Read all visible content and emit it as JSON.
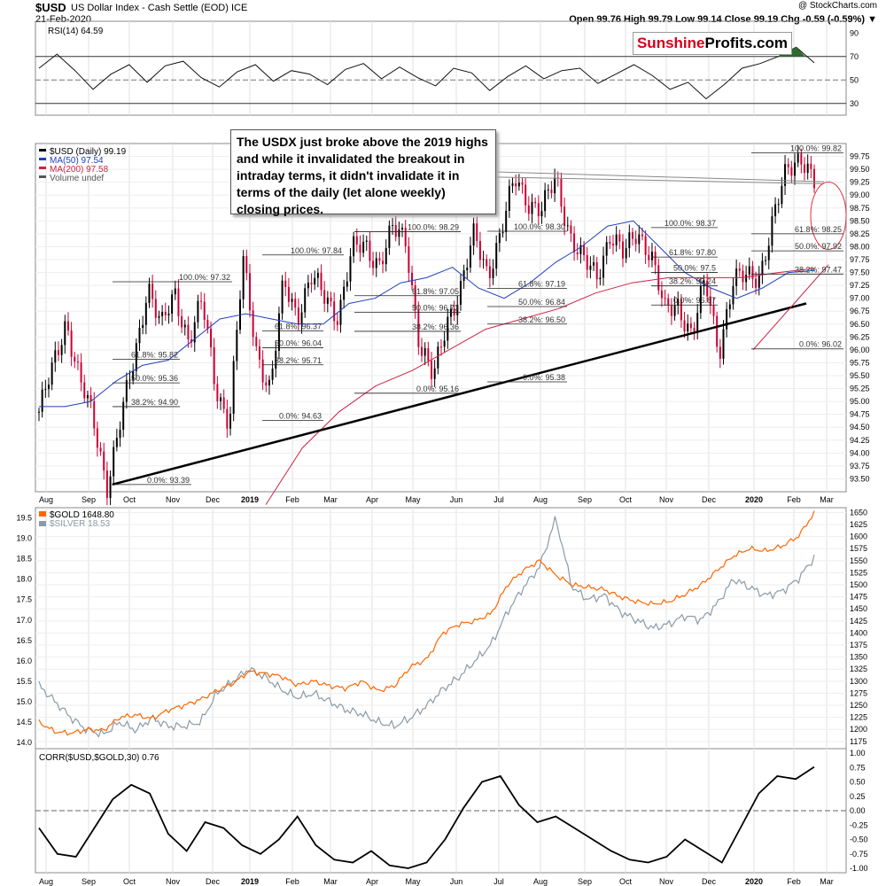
{
  "header": {
    "symbol": "$USD",
    "description": "US Dollar Index - Cash Settle (EOD)  ICE",
    "date": "21-Feb-2020",
    "credit": "@ StockCharts.com",
    "ohlc": "Open 99.76  High 99.79  Low 99.14  Close 99.19  Chg -0.59 (-0.59%) ▼"
  },
  "logo": {
    "part1": "Sunshine",
    "part2": "Profits.com"
  },
  "annotation": "The USDX just broke above the 2019 highs and while it invalidated the breakout in intraday terms, it didn't invalidate it in terms of the daily (let alone weekly) closing prices.",
  "colors": {
    "gold": "#ff6600",
    "silver": "#8a9aa6",
    "ma50": "#1f3fbf",
    "ma200": "#cc2244",
    "candle_down": "#cc0033",
    "candle_up": "#000000",
    "rsi_fill": "#2e6b2e"
  },
  "chart_data": [
    {
      "type": "line",
      "panel": "RSI",
      "title": "RSI(14) 64.59",
      "yticks": [
        30,
        50,
        70,
        90
      ],
      "ylim": [
        20,
        100
      ],
      "reference_lines": [
        30,
        50,
        70
      ],
      "series": [
        {
          "name": "RSI(14)",
          "values": [
            60,
            72,
            58,
            42,
            55,
            63,
            48,
            62,
            66,
            52,
            44,
            57,
            63,
            49,
            58,
            55,
            46,
            59,
            64,
            51,
            61,
            52,
            45,
            60,
            56,
            41,
            53,
            62,
            51,
            58,
            60,
            47,
            55,
            63,
            54,
            42,
            48,
            34,
            46,
            60,
            64,
            70,
            78,
            64.59
          ]
        }
      ]
    },
    {
      "type": "line",
      "panel": "USD",
      "title": "$USD (Daily) 99.19",
      "legend": [
        "$USD (Daily) 99.19",
        "MA(50) 97.54",
        "MA(200) 97.58",
        "Volume undef"
      ],
      "ylim": [
        93.25,
        100.0
      ],
      "yticks": [
        93.5,
        93.75,
        94.0,
        94.25,
        94.5,
        94.75,
        95.0,
        95.25,
        95.5,
        95.75,
        96.0,
        96.25,
        96.5,
        96.75,
        97.0,
        97.25,
        97.5,
        97.75,
        98.0,
        98.25,
        98.5,
        98.75,
        99.0,
        99.25,
        99.5,
        99.75
      ],
      "x_labels": [
        "Aug",
        "Sep",
        "Oct",
        "Nov",
        "Dec",
        "2019",
        "Feb",
        "Mar",
        "Apr",
        "May",
        "Jun",
        "Jul",
        "Aug",
        "Sep",
        "Oct",
        "Nov",
        "Dec",
        "2020",
        "Feb",
        "Mar"
      ],
      "series": [
        {
          "name": "$USD (Daily)",
          "values": [
            94.8,
            95.6,
            96.6,
            95.4,
            94.6,
            93.4,
            94.6,
            95.8,
            97.3,
            96.4,
            97.1,
            96.2,
            96.9,
            95.3,
            94.6,
            97.7,
            96.0,
            95.2,
            97.3,
            96.7,
            97.4,
            97.0,
            96.7,
            97.9,
            98.0,
            97.7,
            98.3,
            98.1,
            96.1,
            95.4,
            96.6,
            97.2,
            98.2,
            97.5,
            98.3,
            99.3,
            98.9,
            98.7,
            99.3,
            98.3,
            97.7,
            97.4,
            98.3,
            97.8,
            98.3,
            97.9,
            96.7,
            96.9,
            96.3,
            97.3,
            96.0,
            97.3,
            97.4,
            97.5,
            98.5,
            99.5,
            99.82,
            99.19
          ]
        },
        {
          "name": "MA(50)",
          "values": [
            94.9,
            94.9,
            95.0,
            95.4,
            95.7,
            95.8,
            96.2,
            96.6,
            96.7,
            96.6,
            96.5,
            96.5,
            96.9,
            97.0,
            97.3,
            97.4,
            97.6,
            97.2,
            97.0,
            97.3,
            97.7,
            98.0,
            98.4,
            98.5,
            98.0,
            97.5,
            97.2,
            97.0,
            97.2,
            97.5,
            97.54
          ]
        },
        {
          "name": "MA(200)",
          "values": [
            93.0,
            94.1,
            94.8,
            95.3,
            95.6,
            96.0,
            96.4,
            96.6,
            96.8,
            97.1,
            97.3,
            97.4,
            97.4,
            97.4,
            97.5,
            97.58
          ]
        }
      ],
      "fib_labels": [
        "0.0%: 93.39",
        "100.0%: 97.32",
        "61.8%: 95.82",
        "50.0%: 95.36",
        "38.2%: 94.90",
        "0.0%: 94.63",
        "100.0%: 97.84",
        "61.8%: 96.37",
        "50.0%: 96.04",
        "38.2%: 95.71",
        "100.0%: 98.29",
        "61.8%: 97.05",
        "50.0%: 96.73",
        "38.2%: 96.36",
        "0.0%: 95.16",
        "100.0%: 98.30",
        "61.8%: 97.19",
        "50.0%: 96.84",
        "38.2%: 96.50",
        "0.0%: 95.38",
        "100.0%: 98.37",
        "61.8%: 97.80",
        "50.0%: 97.5",
        "38.2%: 97.24",
        "0.0%: 96.87",
        "100.0%: 99.82",
        "61.8%: 98.25",
        "50.0%: 97.92",
        "38.2%: 97.47",
        "0.0%: 96.02"
      ],
      "annotations": [
        "Rising support trendline from Sep 2018 low",
        "Horizontal resistance at 2019 highs",
        "Circled breakout area"
      ]
    },
    {
      "type": "line",
      "panel": "Gold & Silver",
      "title": "$GOLD 1648.80",
      "legend": [
        "$GOLD 1648.80",
        "$SILVER 18.53"
      ],
      "y_left_ticks": [
        14.0,
        14.5,
        15.0,
        15.5,
        16.0,
        16.5,
        17.0,
        17.5,
        18.0,
        18.5,
        19.0,
        19.5
      ],
      "y_left_range": [
        13.85,
        19.75
      ],
      "y_right_ticks": [
        1175,
        1200,
        1225,
        1250,
        1275,
        1300,
        1325,
        1350,
        1375,
        1400,
        1425,
        1450,
        1475,
        1500,
        1525,
        1550,
        1575,
        1600,
        1625,
        1650
      ],
      "y_right_range": [
        1160,
        1660
      ],
      "series": [
        {
          "name": "$GOLD",
          "values": [
            1215,
            1195,
            1192,
            1200,
            1198,
            1225,
            1230,
            1222,
            1240,
            1250,
            1262,
            1280,
            1295,
            1320,
            1316,
            1310,
            1292,
            1300,
            1290,
            1285,
            1300,
            1280,
            1290,
            1330,
            1345,
            1400,
            1418,
            1425,
            1440,
            1500,
            1530,
            1550,
            1520,
            1500,
            1495,
            1490,
            1475,
            1465,
            1460,
            1465,
            1480,
            1500,
            1530,
            1560,
            1575,
            1570,
            1580,
            1600,
            1648.8
          ]
        },
        {
          "name": "$SILVER",
          "values": [
            15.4,
            15.0,
            14.6,
            14.3,
            14.2,
            14.5,
            14.3,
            14.6,
            14.4,
            14.4,
            14.5,
            15.2,
            15.5,
            15.8,
            15.6,
            15.3,
            15.1,
            15.2,
            15.0,
            14.8,
            14.7,
            14.5,
            14.4,
            14.6,
            14.9,
            15.3,
            15.6,
            16.0,
            16.4,
            17.2,
            17.8,
            18.3,
            19.5,
            17.8,
            17.5,
            17.6,
            17.2,
            17.0,
            16.8,
            16.9,
            17.1,
            17.0,
            17.4,
            18.0,
            17.8,
            17.6,
            17.7,
            18.0,
            18.53
          ]
        }
      ]
    },
    {
      "type": "line",
      "panel": "Correlation",
      "title": "CORR($USD,$GOLD,30) 0.76",
      "ylim": [
        -1.0,
        1.0
      ],
      "yticks": [
        -1.0,
        -0.75,
        -0.5,
        -0.25,
        0.0,
        0.25,
        0.5,
        0.75,
        1.0
      ],
      "series": [
        {
          "name": "CORR($USD,$GOLD,30)",
          "values": [
            -0.3,
            -0.75,
            -0.8,
            -0.3,
            0.2,
            0.45,
            0.3,
            -0.4,
            -0.7,
            -0.2,
            -0.3,
            -0.6,
            -0.75,
            -0.5,
            -0.1,
            -0.6,
            -0.85,
            -0.9,
            -0.7,
            -0.95,
            -1.0,
            -0.9,
            -0.5,
            0.05,
            0.5,
            0.6,
            0.1,
            -0.2,
            -0.1,
            -0.3,
            -0.5,
            -0.7,
            -0.85,
            -0.9,
            -0.8,
            -0.5,
            -0.7,
            -0.9,
            -0.3,
            0.3,
            0.6,
            0.55,
            0.76
          ]
        }
      ],
      "x_labels": [
        "Aug",
        "Sep",
        "Oct",
        "Nov",
        "Dec",
        "2019",
        "Feb",
        "Mar",
        "Apr",
        "May",
        "Jun",
        "Jul",
        "Aug",
        "Sep",
        "Oct",
        "Nov",
        "Dec",
        "2020",
        "Feb",
        "Mar"
      ]
    }
  ]
}
